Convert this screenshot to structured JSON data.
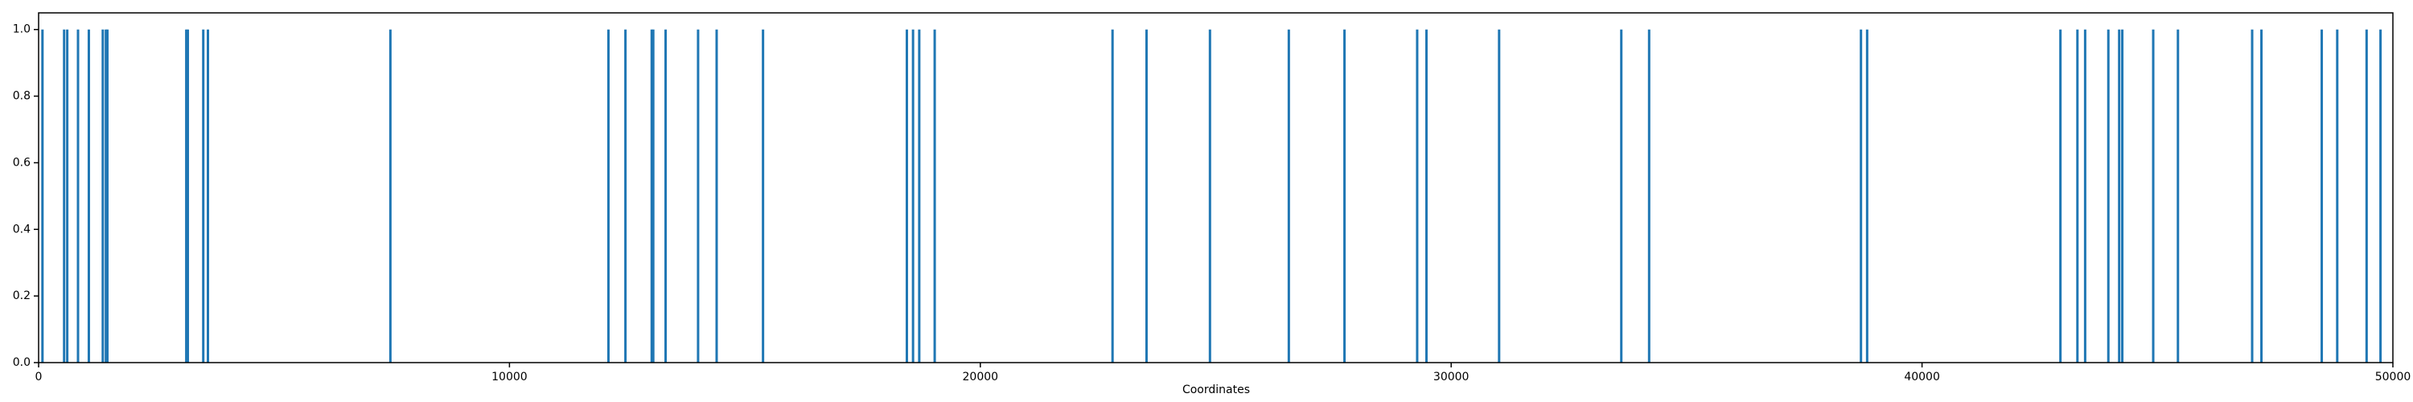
{
  "chart_data": {
    "type": "bar",
    "xlabel": "Coordinates",
    "x": [
      82,
      542,
      608,
      837,
      1067,
      1363,
      1429,
      1461,
      3136,
      3169,
      3497,
      3596,
      7471,
      12102,
      12463,
      13021,
      13054,
      13316,
      14006,
      14400,
      15385,
      18440,
      18571,
      18703,
      19031,
      22808,
      23530,
      24877,
      26552,
      27734,
      29278,
      29475,
      31018,
      33613,
      34204,
      38703,
      38834,
      42939,
      43300,
      43464,
      43957,
      44187,
      44253,
      44910,
      45435,
      47011,
      47208,
      48489,
      48818,
      49442,
      49737
    ],
    "values": [
      1,
      1,
      1,
      1,
      1,
      1,
      1,
      1,
      1,
      1,
      1,
      1,
      1,
      1,
      1,
      1,
      1,
      1,
      1,
      1,
      1,
      1,
      1,
      1,
      1,
      1,
      1,
      1,
      1,
      1,
      1,
      1,
      1,
      1,
      1,
      1,
      1,
      1,
      1,
      1,
      1,
      1,
      1,
      1,
      1,
      1,
      1,
      1,
      1,
      1,
      1
    ],
    "color": "#1f77b4",
    "xlim": [
      0,
      50000
    ],
    "xticks": [
      0,
      10000,
      20000,
      30000,
      40000,
      50000
    ],
    "ylim": [
      0,
      1.05
    ],
    "yticks": [
      {
        "value": 0,
        "label": "0.0"
      },
      {
        "value": 0.2,
        "label": "0.2"
      },
      {
        "value": 0.4,
        "label": "0.4"
      },
      {
        "value": 0.6,
        "label": "0.6"
      },
      {
        "value": 0.8,
        "label": "0.8"
      },
      {
        "value": 1,
        "label": "1.0"
      }
    ]
  }
}
